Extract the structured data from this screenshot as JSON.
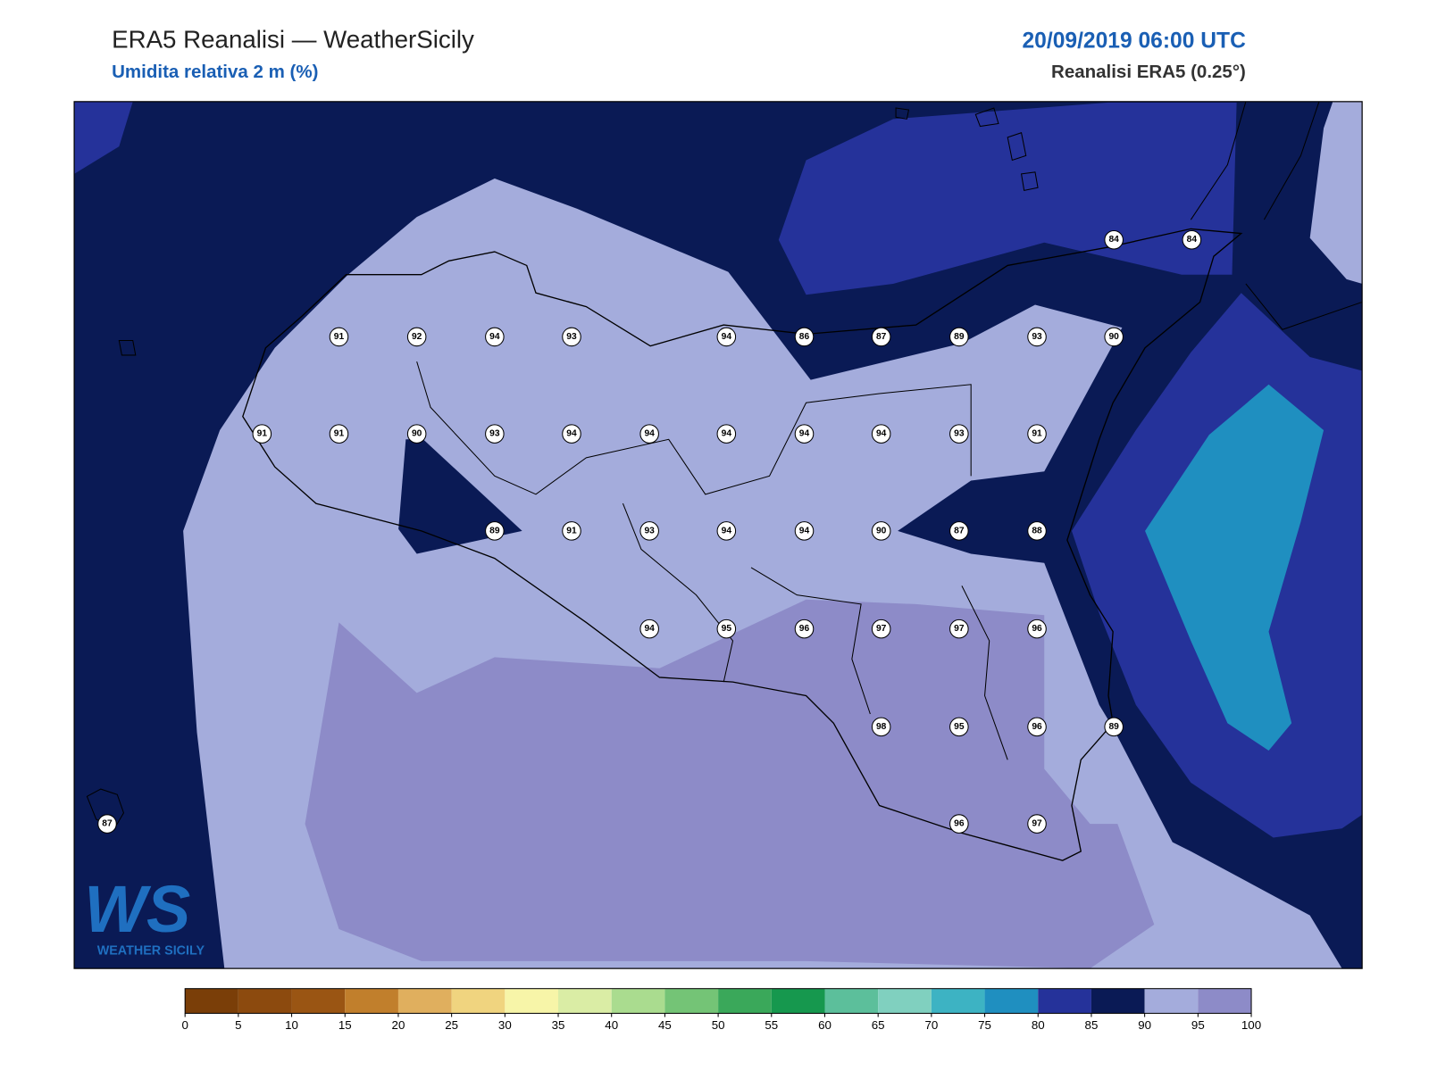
{
  "header": {
    "title": "ERA5 Reanalisi — WeatherSicily",
    "subtitle": "Umidita relativa 2 m (%)",
    "datetime": "20/09/2019 06:00 UTC",
    "source": "Reanalisi ERA5 (0.25°)"
  },
  "stations": [
    84,
    84,
    91,
    92,
    94,
    93,
    94,
    86,
    87,
    89,
    93,
    90,
    91,
    91,
    90,
    93,
    94,
    94,
    94,
    94,
    94,
    93,
    91,
    89,
    91,
    93,
    94,
    94,
    90,
    87,
    88,
    94,
    95,
    96,
    97,
    97,
    96,
    98,
    95,
    96,
    89,
    87,
    96,
    97
  ],
  "colorbar": {
    "ticks": [
      0,
      5,
      10,
      15,
      20,
      25,
      30,
      35,
      40,
      45,
      50,
      55,
      60,
      65,
      70,
      75,
      80,
      85,
      90,
      95,
      100
    ],
    "colors": [
      "#7a3e08",
      "#8c4a0e",
      "#9a5513",
      "#c17f2c",
      "#e0af5e",
      "#f0d47f",
      "#f7f5a8",
      "#daeda5",
      "#aadc8f",
      "#74c476",
      "#3aa85a",
      "#16984e",
      "#5cbf9b",
      "#80d0bf",
      "#3db3c3",
      "#1f8fc0",
      "#25329a",
      "#0a1a55",
      "#a4acdc",
      "#8d8bc8"
    ]
  },
  "logo": {
    "mark": "WS",
    "text": "WEATHER SICILY"
  }
}
